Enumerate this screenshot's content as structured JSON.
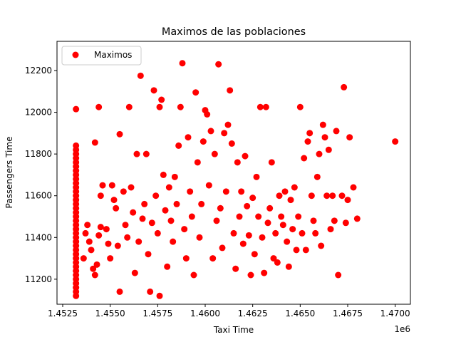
{
  "chart_data": {
    "type": "scatter",
    "title": "Maximos de las poblaciones",
    "xlabel": "Taxi Time",
    "ylabel": "Passengers Time",
    "x_offset_label": "1e6",
    "x_multiplier": 1000000,
    "xlim": [
      1.4522,
      1.4708
    ],
    "ylim": [
      11080,
      12340
    ],
    "xticks": [
      1.4525,
      1.455,
      1.4575,
      1.46,
      1.4625,
      1.465,
      1.4675,
      1.47
    ],
    "xtick_labels": [
      "1.4525",
      "1.4550",
      "1.4575",
      "1.4600",
      "1.4625",
      "1.4650",
      "1.4675",
      "1.4700"
    ],
    "yticks": [
      11200,
      11400,
      11600,
      11800,
      12000,
      12200
    ],
    "ytick_labels": [
      "11200",
      "11400",
      "11600",
      "11800",
      "12000",
      "12200"
    ],
    "grid": false,
    "legend_position": "top-left",
    "series": [
      {
        "name": "Maximos",
        "color": "#ff0000",
        "marker": "circle",
        "points": [
          [
            1.4532,
            11120
          ],
          [
            1.4532,
            11140
          ],
          [
            1.4532,
            11160
          ],
          [
            1.4532,
            11180
          ],
          [
            1.4532,
            11200
          ],
          [
            1.4532,
            11220
          ],
          [
            1.4532,
            11240
          ],
          [
            1.4532,
            11260
          ],
          [
            1.4532,
            11280
          ],
          [
            1.4532,
            11300
          ],
          [
            1.4532,
            11320
          ],
          [
            1.4532,
            11340
          ],
          [
            1.4532,
            11360
          ],
          [
            1.4532,
            11380
          ],
          [
            1.4532,
            11400
          ],
          [
            1.4532,
            11420
          ],
          [
            1.4532,
            11440
          ],
          [
            1.4532,
            11460
          ],
          [
            1.4532,
            11480
          ],
          [
            1.4532,
            11500
          ],
          [
            1.4532,
            11520
          ],
          [
            1.4532,
            11540
          ],
          [
            1.4532,
            11560
          ],
          [
            1.4532,
            11580
          ],
          [
            1.4532,
            11600
          ],
          [
            1.4532,
            11620
          ],
          [
            1.4532,
            11640
          ],
          [
            1.4532,
            11660
          ],
          [
            1.4532,
            11680
          ],
          [
            1.4532,
            11700
          ],
          [
            1.4532,
            11720
          ],
          [
            1.4532,
            11740
          ],
          [
            1.4532,
            11760
          ],
          [
            1.4532,
            11780
          ],
          [
            1.4532,
            11800
          ],
          [
            1.4532,
            11820
          ],
          [
            1.4532,
            11840
          ],
          [
            1.4532,
            12015
          ],
          [
            1.4536,
            11300
          ],
          [
            1.4537,
            11420
          ],
          [
            1.4538,
            11460
          ],
          [
            1.4539,
            11380
          ],
          [
            1.454,
            11340
          ],
          [
            1.4541,
            11250
          ],
          [
            1.4542,
            11220
          ],
          [
            1.4543,
            11270
          ],
          [
            1.4544,
            11410
          ],
          [
            1.4545,
            11450
          ],
          [
            1.4545,
            11600
          ],
          [
            1.4546,
            11650
          ],
          [
            1.4544,
            12025
          ],
          [
            1.4542,
            11855
          ],
          [
            1.4548,
            11440
          ],
          [
            1.4549,
            11370
          ],
          [
            1.455,
            11300
          ],
          [
            1.4551,
            11650
          ],
          [
            1.4552,
            11580
          ],
          [
            1.4553,
            11540
          ],
          [
            1.4554,
            11360
          ],
          [
            1.4555,
            11140
          ],
          [
            1.4555,
            11895
          ],
          [
            1.4557,
            11620
          ],
          [
            1.4558,
            11460
          ],
          [
            1.4559,
            11400
          ],
          [
            1.456,
            12025
          ],
          [
            1.4561,
            11640
          ],
          [
            1.4562,
            11520
          ],
          [
            1.4563,
            11230
          ],
          [
            1.4564,
            11800
          ],
          [
            1.4565,
            11380
          ],
          [
            1.4566,
            12175
          ],
          [
            1.4567,
            11490
          ],
          [
            1.4568,
            11560
          ],
          [
            1.4569,
            11800
          ],
          [
            1.457,
            11320
          ],
          [
            1.4571,
            11140
          ],
          [
            1.4572,
            11470
          ],
          [
            1.4573,
            12105
          ],
          [
            1.4574,
            11600
          ],
          [
            1.4575,
            11420
          ],
          [
            1.4576,
            12025
          ],
          [
            1.4576,
            11120
          ],
          [
            1.4577,
            12060
          ],
          [
            1.4578,
            11700
          ],
          [
            1.4579,
            11530
          ],
          [
            1.458,
            11260
          ],
          [
            1.4581,
            11640
          ],
          [
            1.4582,
            11480
          ],
          [
            1.4583,
            11380
          ],
          [
            1.4584,
            11690
          ],
          [
            1.4585,
            11560
          ],
          [
            1.4586,
            11840
          ],
          [
            1.4587,
            12025
          ],
          [
            1.4588,
            12235
          ],
          [
            1.4589,
            11440
          ],
          [
            1.459,
            11300
          ],
          [
            1.4591,
            11880
          ],
          [
            1.4592,
            11620
          ],
          [
            1.4593,
            11500
          ],
          [
            1.4594,
            11220
          ],
          [
            1.4595,
            12095
          ],
          [
            1.4596,
            11760
          ],
          [
            1.4597,
            11400
          ],
          [
            1.4598,
            11560
          ],
          [
            1.4599,
            11860
          ],
          [
            1.46,
            12010
          ],
          [
            1.4601,
            11990
          ],
          [
            1.4602,
            11650
          ],
          [
            1.4603,
            11910
          ],
          [
            1.4604,
            11300
          ],
          [
            1.4605,
            11800
          ],
          [
            1.4606,
            11480
          ],
          [
            1.4607,
            12230
          ],
          [
            1.4608,
            11540
          ],
          [
            1.4609,
            11350
          ],
          [
            1.461,
            11900
          ],
          [
            1.4611,
            11620
          ],
          [
            1.4612,
            11940
          ],
          [
            1.4613,
            12105
          ],
          [
            1.4614,
            11850
          ],
          [
            1.4615,
            11420
          ],
          [
            1.4616,
            11250
          ],
          [
            1.4617,
            11760
          ],
          [
            1.4618,
            11500
          ],
          [
            1.4619,
            11620
          ],
          [
            1.462,
            11370
          ],
          [
            1.4621,
            11790
          ],
          [
            1.4622,
            11550
          ],
          [
            1.4623,
            11410
          ],
          [
            1.4624,
            11220
          ],
          [
            1.4625,
            11590
          ],
          [
            1.4626,
            11320
          ],
          [
            1.4627,
            11690
          ],
          [
            1.4628,
            11500
          ],
          [
            1.4629,
            12025
          ],
          [
            1.463,
            11400
          ],
          [
            1.4631,
            11230
          ],
          [
            1.4632,
            12025
          ],
          [
            1.4633,
            11470
          ],
          [
            1.4634,
            11540
          ],
          [
            1.4635,
            11760
          ],
          [
            1.4636,
            11300
          ],
          [
            1.4637,
            11420
          ],
          [
            1.4638,
            11280
          ],
          [
            1.4639,
            11600
          ],
          [
            1.464,
            11500
          ],
          [
            1.4641,
            11460
          ],
          [
            1.4642,
            11620
          ],
          [
            1.4643,
            11380
          ],
          [
            1.4644,
            11260
          ],
          [
            1.4645,
            11580
          ],
          [
            1.4646,
            11440
          ],
          [
            1.4647,
            11640
          ],
          [
            1.4648,
            11340
          ],
          [
            1.4649,
            11500
          ],
          [
            1.465,
            12025
          ],
          [
            1.4651,
            11420
          ],
          [
            1.4652,
            11780
          ],
          [
            1.4653,
            11340
          ],
          [
            1.4654,
            11860
          ],
          [
            1.4655,
            11900
          ],
          [
            1.4656,
            11600
          ],
          [
            1.4657,
            11480
          ],
          [
            1.4658,
            11420
          ],
          [
            1.4659,
            11690
          ],
          [
            1.466,
            11800
          ],
          [
            1.4661,
            11360
          ],
          [
            1.4662,
            11940
          ],
          [
            1.4663,
            11880
          ],
          [
            1.4664,
            11600
          ],
          [
            1.4665,
            11820
          ],
          [
            1.4666,
            11440
          ],
          [
            1.4667,
            11600
          ],
          [
            1.4668,
            11480
          ],
          [
            1.4669,
            11910
          ],
          [
            1.467,
            11220
          ],
          [
            1.4672,
            11600
          ],
          [
            1.4673,
            12120
          ],
          [
            1.4674,
            11470
          ],
          [
            1.4675,
            11580
          ],
          [
            1.4676,
            11880
          ],
          [
            1.4678,
            11640
          ],
          [
            1.468,
            11490
          ],
          [
            1.47,
            11860
          ]
        ]
      }
    ]
  }
}
